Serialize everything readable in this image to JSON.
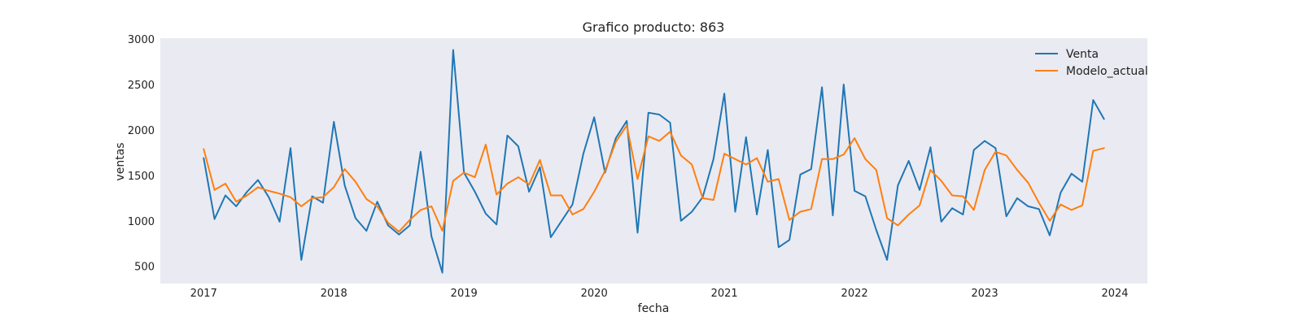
{
  "chart_data": {
    "type": "line",
    "title": "Grafico producto: 863",
    "xlabel": "fecha",
    "ylabel": "ventas",
    "x_start": "2017-01",
    "x_ticks": [
      "2017",
      "2018",
      "2019",
      "2020",
      "2021",
      "2022",
      "2023",
      "2024"
    ],
    "y_ticks": [
      500,
      1000,
      1500,
      2000,
      2500,
      3000
    ],
    "ylim": [
      310,
      3010
    ],
    "xlim": [
      "2016-09",
      "2024-04"
    ],
    "grid": false,
    "legend_position": "top-right",
    "background": "#eaeaf2",
    "series": [
      {
        "name": "Venta",
        "color": "#1f77b4",
        "values": [
          1690,
          1020,
          1280,
          1160,
          1320,
          1450,
          1260,
          990,
          1800,
          570,
          1270,
          1200,
          2090,
          1390,
          1030,
          890,
          1210,
          950,
          850,
          950,
          1760,
          830,
          430,
          2880,
          1530,
          1320,
          1080,
          960,
          1940,
          1820,
          1320,
          1590,
          820,
          1000,
          1180,
          1740,
          2140,
          1530,
          1910,
          2100,
          870,
          2190,
          2170,
          2080,
          1000,
          1100,
          1260,
          1680,
          2400,
          1100,
          1920,
          1070,
          1780,
          710,
          790,
          1510,
          1570,
          2470,
          1060,
          2500,
          1330,
          1270,
          900,
          570,
          1390,
          1660,
          1340,
          1810,
          990,
          1140,
          1070,
          1780,
          1880,
          1800,
          1050,
          1250,
          1160,
          1130,
          840,
          1310,
          1520,
          1430,
          2330,
          2120
        ]
      },
      {
        "name": "Modelo_actual",
        "color": "#ff7f0e",
        "values": [
          1790,
          1340,
          1410,
          1210,
          1280,
          1370,
          1330,
          1300,
          1260,
          1160,
          1250,
          1260,
          1370,
          1570,
          1430,
          1240,
          1160,
          980,
          880,
          1010,
          1120,
          1160,
          890,
          1440,
          1530,
          1480,
          1840,
          1290,
          1410,
          1480,
          1400,
          1670,
          1280,
          1280,
          1070,
          1130,
          1320,
          1550,
          1870,
          2050,
          1460,
          1930,
          1880,
          1980,
          1720,
          1620,
          1250,
          1230,
          1740,
          1680,
          1620,
          1690,
          1430,
          1460,
          1010,
          1100,
          1130,
          1680,
          1680,
          1730,
          1910,
          1680,
          1560,
          1030,
          950,
          1070,
          1170,
          1560,
          1440,
          1280,
          1270,
          1120,
          1560,
          1760,
          1720,
          1560,
          1420,
          1200,
          1000,
          1180,
          1120,
          1170,
          1770,
          1800
        ]
      }
    ]
  }
}
